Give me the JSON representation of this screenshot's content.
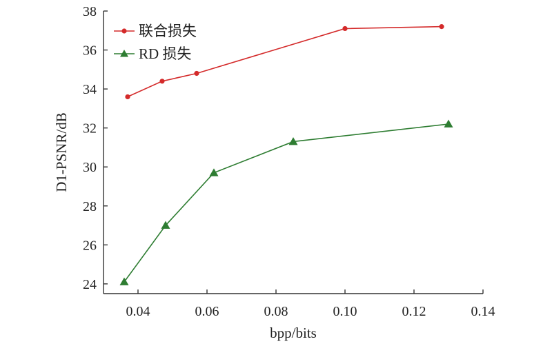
{
  "chart_data": {
    "type": "line",
    "xlabel": "bpp/bits",
    "ylabel": "D1-PSNR/dB",
    "xlim": [
      0.03,
      0.14
    ],
    "ylim": [
      23.5,
      38
    ],
    "xticks": [
      0.04,
      0.06,
      0.08,
      0.1,
      0.12,
      0.14
    ],
    "xtick_labels": [
      "0.04",
      "0.06",
      "0.08",
      "0.10",
      "0.12",
      "0.14"
    ],
    "yticks": [
      24,
      26,
      28,
      30,
      32,
      34,
      36,
      38
    ],
    "ytick_labels": [
      "24",
      "26",
      "28",
      "30",
      "32",
      "34",
      "36",
      "38"
    ],
    "legend_position": "top-left",
    "grid": false,
    "series": [
      {
        "name": "联合损失",
        "color": "#d42a2a",
        "marker": "circle",
        "x": [
          0.037,
          0.047,
          0.057,
          0.1,
          0.128
        ],
        "y": [
          33.6,
          34.4,
          34.8,
          37.1,
          37.2
        ]
      },
      {
        "name": "RD 损失",
        "color": "#2e7d32",
        "marker": "triangle",
        "x": [
          0.036,
          0.048,
          0.062,
          0.085,
          0.13
        ],
        "y": [
          24.1,
          27.0,
          29.7,
          31.3,
          32.2
        ]
      }
    ]
  }
}
